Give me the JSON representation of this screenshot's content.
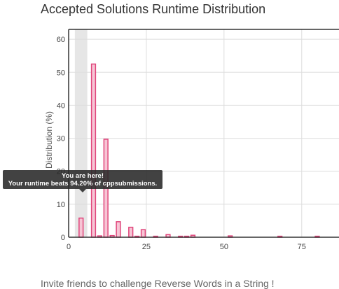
{
  "chart_data": {
    "type": "bar",
    "title": "Accepted Solutions Runtime Distribution",
    "xlabel": "",
    "ylabel": "Distribution (%)",
    "xlim": [
      0,
      87
    ],
    "ylim": [
      0,
      63
    ],
    "xticks": [
      0,
      25,
      50,
      75
    ],
    "yticks": [
      0,
      10,
      20,
      30,
      40,
      50,
      60
    ],
    "grid": true,
    "bar_width": 1.3,
    "x": [
      4,
      8,
      10,
      12,
      14,
      16,
      20,
      22,
      24,
      28,
      32,
      36,
      38,
      40,
      52,
      68,
      80
    ],
    "values": [
      5.8,
      52.5,
      0.4,
      29.7,
      0.5,
      4.7,
      3.0,
      0.3,
      2.3,
      0.3,
      0.8,
      0.3,
      0.3,
      0.6,
      0.4,
      0.3,
      0.3
    ],
    "bar_color": "#e0457b",
    "bar_fill": "#f7c5d5",
    "highlight": {
      "x_from": 2,
      "x_to": 6,
      "color": "#e6e6e6"
    }
  },
  "tooltip": {
    "line1": "You are here!",
    "line2": "Your runtime beats 94.20% of cppsubmissions."
  },
  "footer": "Invite friends to challenge Reverse Words in a String !"
}
